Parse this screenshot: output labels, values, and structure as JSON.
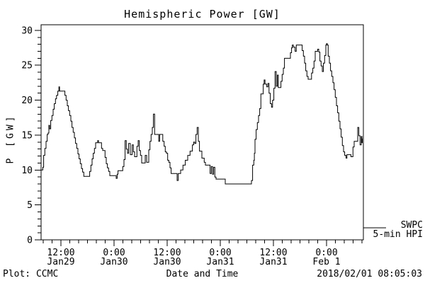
{
  "title": "Hemispheric Power [GW]",
  "footer": {
    "left": "Plot: CCMC",
    "center": "Date and Time",
    "right": "2018/02/01 08:05:03"
  },
  "legend": {
    "line1": "SWPC",
    "line2": "5-min HPI"
  },
  "colors": {
    "line": "#000000",
    "background": "#ffffff",
    "text": "#000000"
  },
  "chart_data": {
    "type": "line",
    "title": "Hemispheric Power [GW]",
    "xlabel": "Date and Time",
    "ylabel": "P [GW]",
    "legend_entries": [
      "SWPC 5-min HPI"
    ],
    "legend_position": "right-outside",
    "grid": false,
    "x_unit_hours_since": "Jan29 00:00",
    "xlim": [
      7.52,
      80.32
    ],
    "ylim": [
      0,
      30.8
    ],
    "x_major_ticks": [
      {
        "t": 12,
        "time": "12:00",
        "date": "Jan29"
      },
      {
        "t": 24,
        "time": "0:00",
        "date": "Jan30"
      },
      {
        "t": 36,
        "time": "12:00",
        "date": "Jan30"
      },
      {
        "t": 48,
        "time": "0:00",
        "date": "Jan31"
      },
      {
        "t": 60,
        "time": "12:00",
        "date": "Jan31"
      },
      {
        "t": 72,
        "time": "0:00",
        "date": "Feb 1"
      }
    ],
    "x_minor_step_hours": 2,
    "y_major_ticks": [
      0,
      5,
      10,
      15,
      20,
      25,
      30
    ],
    "y_minor_step": 1,
    "series": [
      {
        "name": "SWPC 5-min HPI",
        "color": "#000000",
        "points": [
          [
            7.52,
            10.0
          ],
          [
            7.9,
            10.4
          ],
          [
            8.1,
            12.1
          ],
          [
            8.37,
            13.1
          ],
          [
            8.64,
            14.1
          ],
          [
            8.9,
            15.1
          ],
          [
            9.1,
            15.3
          ],
          [
            9.28,
            16.4
          ],
          [
            9.45,
            15.9
          ],
          [
            9.7,
            17.1
          ],
          [
            9.97,
            17.8
          ],
          [
            10.24,
            18.7
          ],
          [
            10.5,
            19.5
          ],
          [
            10.77,
            20.2
          ],
          [
            11.0,
            20.7
          ],
          [
            11.3,
            21.3
          ],
          [
            11.55,
            21.9
          ],
          [
            11.7,
            21.3
          ],
          [
            12.6,
            21.3
          ],
          [
            12.9,
            20.7
          ],
          [
            13.17,
            20.0
          ],
          [
            13.44,
            19.2
          ],
          [
            13.7,
            18.5
          ],
          [
            13.97,
            17.8
          ],
          [
            14.24,
            17.0
          ],
          [
            14.5,
            16.1
          ],
          [
            14.77,
            15.4
          ],
          [
            15.04,
            14.6
          ],
          [
            15.3,
            13.8
          ],
          [
            15.57,
            13.1
          ],
          [
            15.84,
            12.3
          ],
          [
            16.1,
            11.6
          ],
          [
            16.37,
            10.9
          ],
          [
            16.64,
            10.2
          ],
          [
            16.9,
            9.7
          ],
          [
            17.17,
            9.1
          ],
          [
            18.24,
            9.1
          ],
          [
            18.5,
            9.8
          ],
          [
            18.77,
            10.7
          ],
          [
            19.04,
            11.6
          ],
          [
            19.3,
            12.4
          ],
          [
            19.57,
            13.1
          ],
          [
            19.84,
            13.9
          ],
          [
            20.3,
            14.2
          ],
          [
            20.5,
            13.9
          ],
          [
            20.9,
            13.9
          ],
          [
            21.17,
            13.1
          ],
          [
            21.44,
            12.8
          ],
          [
            21.97,
            11.8
          ],
          [
            22.24,
            10.9
          ],
          [
            22.5,
            10.3
          ],
          [
            22.77,
            9.8
          ],
          [
            23.04,
            9.2
          ],
          [
            24.3,
            9.2
          ],
          [
            24.48,
            8.8
          ],
          [
            24.7,
            9.4
          ],
          [
            24.9,
            9.9
          ],
          [
            25.7,
            9.9
          ],
          [
            25.97,
            10.5
          ],
          [
            26.24,
            11.5
          ],
          [
            26.5,
            14.2
          ],
          [
            26.77,
            13.0
          ],
          [
            27.04,
            12.4
          ],
          [
            27.3,
            13.8
          ],
          [
            27.68,
            12.2
          ],
          [
            28.1,
            13.6
          ],
          [
            28.37,
            12.6
          ],
          [
            28.64,
            11.9
          ],
          [
            29.17,
            13.4
          ],
          [
            29.44,
            14.2
          ],
          [
            29.7,
            12.8
          ],
          [
            29.97,
            12.1
          ],
          [
            30.24,
            11.0
          ],
          [
            30.72,
            11.0
          ],
          [
            31.04,
            12.1
          ],
          [
            31.36,
            11.1
          ],
          [
            31.84,
            12.9
          ],
          [
            32.11,
            14.1
          ],
          [
            32.37,
            15.1
          ],
          [
            32.64,
            16.1
          ],
          [
            32.9,
            18.0
          ],
          [
            33.17,
            15.1
          ],
          [
            33.8,
            15.1
          ],
          [
            34.1,
            14.1
          ],
          [
            34.3,
            15.1
          ],
          [
            35.0,
            14.1
          ],
          [
            35.31,
            13.4
          ],
          [
            35.57,
            12.6
          ],
          [
            35.84,
            12.4
          ],
          [
            36.11,
            11.4
          ],
          [
            36.37,
            11.1
          ],
          [
            36.64,
            10.3
          ],
          [
            36.9,
            9.5
          ],
          [
            37.9,
            9.5
          ],
          [
            38.24,
            8.5
          ],
          [
            38.5,
            9.5
          ],
          [
            39.04,
            10.0
          ],
          [
            39.57,
            10.7
          ],
          [
            40.1,
            11.4
          ],
          [
            40.64,
            12.1
          ],
          [
            41.17,
            12.7
          ],
          [
            41.7,
            13.6
          ],
          [
            42.0,
            14.0
          ],
          [
            42.24,
            13.8
          ],
          [
            42.5,
            15.1
          ],
          [
            42.77,
            16.1
          ],
          [
            43.04,
            14.1
          ],
          [
            43.3,
            12.7
          ],
          [
            43.84,
            11.7
          ],
          [
            44.37,
            11.1
          ],
          [
            44.64,
            10.7
          ],
          [
            45.44,
            10.7
          ],
          [
            45.7,
            9.5
          ],
          [
            45.97,
            10.5
          ],
          [
            46.24,
            9.4
          ],
          [
            46.5,
            10.4
          ],
          [
            46.77,
            9.0
          ],
          [
            47.04,
            8.7
          ],
          [
            48.96,
            8.7
          ],
          [
            49.12,
            8.0
          ],
          [
            54.7,
            8.0
          ],
          [
            55.04,
            8.5
          ],
          [
            55.3,
            10.7
          ],
          [
            55.57,
            11.4
          ],
          [
            55.7,
            12.4
          ],
          [
            55.84,
            14.4
          ],
          [
            56.1,
            15.8
          ],
          [
            56.37,
            16.8
          ],
          [
            56.64,
            17.8
          ],
          [
            56.9,
            18.8
          ],
          [
            57.17,
            20.9
          ],
          [
            57.7,
            22.3
          ],
          [
            57.9,
            22.9
          ],
          [
            58.1,
            22.3
          ],
          [
            58.5,
            21.9
          ],
          [
            58.77,
            22.4
          ],
          [
            59.0,
            21.0
          ],
          [
            59.3,
            19.5
          ],
          [
            59.57,
            19.0
          ],
          [
            59.8,
            20.0
          ],
          [
            60.1,
            21.7
          ],
          [
            60.37,
            24.1
          ],
          [
            60.64,
            22.0
          ],
          [
            60.9,
            23.6
          ],
          [
            61.1,
            21.8
          ],
          [
            61.4,
            21.8
          ],
          [
            61.7,
            22.7
          ],
          [
            61.97,
            23.7
          ],
          [
            62.24,
            24.6
          ],
          [
            62.5,
            26.0
          ],
          [
            63.5,
            26.0
          ],
          [
            63.84,
            26.8
          ],
          [
            64.1,
            27.5
          ],
          [
            64.27,
            27.9
          ],
          [
            64.5,
            27.6
          ],
          [
            64.9,
            27.0
          ],
          [
            65.17,
            27.9
          ],
          [
            66.24,
            27.9
          ],
          [
            66.5,
            27.1
          ],
          [
            66.77,
            26.3
          ],
          [
            67.04,
            25.3
          ],
          [
            67.3,
            24.2
          ],
          [
            67.57,
            23.4
          ],
          [
            67.84,
            23.0
          ],
          [
            68.32,
            23.0
          ],
          [
            68.6,
            23.9
          ],
          [
            68.9,
            24.6
          ],
          [
            69.17,
            25.6
          ],
          [
            69.44,
            27.0
          ],
          [
            70.0,
            27.3
          ],
          [
            70.24,
            26.9
          ],
          [
            70.5,
            25.6
          ],
          [
            70.77,
            24.9
          ],
          [
            71.04,
            24.1
          ],
          [
            71.3,
            25.3
          ],
          [
            71.57,
            26.4
          ],
          [
            71.84,
            27.9
          ],
          [
            72.0,
            28.1
          ],
          [
            72.16,
            27.9
          ],
          [
            72.37,
            26.3
          ],
          [
            72.64,
            25.3
          ],
          [
            72.9,
            24.2
          ],
          [
            73.17,
            23.4
          ],
          [
            73.44,
            22.5
          ],
          [
            73.7,
            21.5
          ],
          [
            73.97,
            20.4
          ],
          [
            74.24,
            19.2
          ],
          [
            74.5,
            18.2
          ],
          [
            74.77,
            17.0
          ],
          [
            75.04,
            15.9
          ],
          [
            75.3,
            14.7
          ],
          [
            75.57,
            13.5
          ],
          [
            75.84,
            12.6
          ],
          [
            76.1,
            12.1
          ],
          [
            76.4,
            11.7
          ],
          [
            76.6,
            12.2
          ],
          [
            77.2,
            12.2
          ],
          [
            77.5,
            11.9
          ],
          [
            77.97,
            13.3
          ],
          [
            78.24,
            14.1
          ],
          [
            78.9,
            14.1
          ],
          [
            79.04,
            16.1
          ],
          [
            79.3,
            14.9
          ],
          [
            79.57,
            13.6
          ],
          [
            79.84,
            14.8
          ],
          [
            80.0,
            13.9
          ],
          [
            80.08,
            14.5
          ]
        ]
      }
    ]
  }
}
